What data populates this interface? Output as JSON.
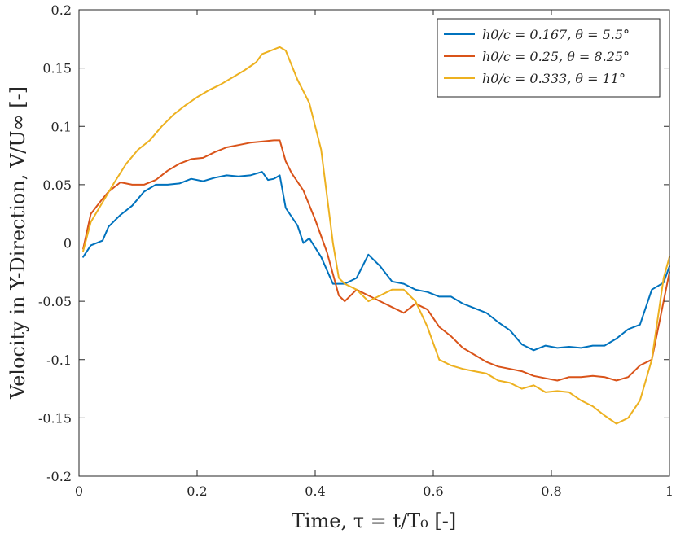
{
  "chart_data": {
    "type": "line",
    "title": "",
    "xlabel": "Time, τ = t/T₀ [-]",
    "ylabel": "Velocity in Y-Direction, V/U∞ [-]",
    "xlim": [
      0,
      1
    ],
    "ylim": [
      -0.2,
      0.2
    ],
    "xticks": [
      0,
      0.2,
      0.4,
      0.6,
      0.8,
      1
    ],
    "xtick_labels": [
      "0",
      "0.2",
      "0.4",
      "0.6",
      "0.8",
      "1"
    ],
    "yticks": [
      -0.2,
      -0.15,
      -0.1,
      -0.05,
      0,
      0.05,
      0.1,
      0.15,
      0.2
    ],
    "ytick_labels": [
      "-0.2",
      "-0.15",
      "-0.1",
      "-0.05",
      "0",
      "0.05",
      "0.1",
      "0.15",
      "0.2"
    ],
    "grid": false,
    "legend_position": "top-right",
    "series": [
      {
        "name": "h0/c = 0.167, θ = 5.5°",
        "color": "#0072BD",
        "x": [
          0.007,
          0.02,
          0.04,
          0.05,
          0.07,
          0.09,
          0.11,
          0.13,
          0.15,
          0.17,
          0.19,
          0.21,
          0.23,
          0.25,
          0.27,
          0.29,
          0.31,
          0.32,
          0.33,
          0.34,
          0.35,
          0.37,
          0.38,
          0.39,
          0.41,
          0.43,
          0.45,
          0.47,
          0.49,
          0.51,
          0.53,
          0.55,
          0.57,
          0.59,
          0.61,
          0.63,
          0.65,
          0.67,
          0.69,
          0.71,
          0.73,
          0.75,
          0.77,
          0.79,
          0.81,
          0.83,
          0.85,
          0.87,
          0.89,
          0.91,
          0.93,
          0.95,
          0.97,
          0.99,
          1.0
        ],
        "values": [
          -0.012,
          -0.002,
          0.002,
          0.014,
          0.024,
          0.032,
          0.044,
          0.05,
          0.05,
          0.051,
          0.055,
          0.053,
          0.056,
          0.058,
          0.057,
          0.058,
          0.061,
          0.054,
          0.055,
          0.058,
          0.03,
          0.015,
          0.0,
          0.004,
          -0.012,
          -0.035,
          -0.035,
          -0.03,
          -0.01,
          -0.02,
          -0.033,
          -0.035,
          -0.04,
          -0.042,
          -0.046,
          -0.046,
          -0.052,
          -0.056,
          -0.06,
          -0.068,
          -0.075,
          -0.087,
          -0.092,
          -0.088,
          -0.09,
          -0.089,
          -0.09,
          -0.088,
          -0.088,
          -0.082,
          -0.074,
          -0.07,
          -0.04,
          -0.034,
          -0.02
        ]
      },
      {
        "name": "h0/c = 0.25, θ = 8.25°",
        "color": "#D95319",
        "x": [
          0.007,
          0.02,
          0.04,
          0.05,
          0.07,
          0.09,
          0.11,
          0.13,
          0.15,
          0.17,
          0.19,
          0.21,
          0.23,
          0.25,
          0.27,
          0.29,
          0.31,
          0.33,
          0.34,
          0.35,
          0.36,
          0.38,
          0.4,
          0.42,
          0.44,
          0.45,
          0.47,
          0.49,
          0.51,
          0.53,
          0.55,
          0.57,
          0.59,
          0.61,
          0.63,
          0.65,
          0.67,
          0.69,
          0.71,
          0.73,
          0.75,
          0.77,
          0.79,
          0.81,
          0.83,
          0.85,
          0.87,
          0.89,
          0.91,
          0.93,
          0.95,
          0.97,
          0.99,
          1.0
        ],
        "values": [
          -0.005,
          0.025,
          0.038,
          0.044,
          0.052,
          0.05,
          0.05,
          0.054,
          0.062,
          0.068,
          0.072,
          0.073,
          0.078,
          0.082,
          0.084,
          0.086,
          0.087,
          0.088,
          0.088,
          0.07,
          0.06,
          0.045,
          0.02,
          -0.008,
          -0.045,
          -0.05,
          -0.04,
          -0.045,
          -0.05,
          -0.055,
          -0.06,
          -0.052,
          -0.057,
          -0.072,
          -0.08,
          -0.09,
          -0.096,
          -0.102,
          -0.106,
          -0.108,
          -0.11,
          -0.114,
          -0.116,
          -0.118,
          -0.115,
          -0.115,
          -0.114,
          -0.115,
          -0.118,
          -0.115,
          -0.105,
          -0.1,
          -0.05,
          -0.025
        ]
      },
      {
        "name": "h0/c = 0.333, θ = 11°",
        "color": "#EDB120",
        "x": [
          0.007,
          0.02,
          0.04,
          0.06,
          0.08,
          0.1,
          0.12,
          0.14,
          0.16,
          0.18,
          0.2,
          0.22,
          0.24,
          0.26,
          0.28,
          0.3,
          0.31,
          0.33,
          0.34,
          0.35,
          0.37,
          0.39,
          0.41,
          0.43,
          0.44,
          0.45,
          0.47,
          0.49,
          0.51,
          0.53,
          0.55,
          0.57,
          0.59,
          0.61,
          0.63,
          0.65,
          0.67,
          0.69,
          0.71,
          0.73,
          0.75,
          0.77,
          0.79,
          0.81,
          0.83,
          0.85,
          0.87,
          0.89,
          0.91,
          0.93,
          0.95,
          0.97,
          0.99,
          1.0
        ],
        "values": [
          -0.007,
          0.018,
          0.035,
          0.052,
          0.068,
          0.08,
          0.088,
          0.1,
          0.11,
          0.118,
          0.125,
          0.131,
          0.136,
          0.142,
          0.148,
          0.155,
          0.162,
          0.166,
          0.168,
          0.165,
          0.14,
          0.12,
          0.08,
          0.0,
          -0.03,
          -0.035,
          -0.04,
          -0.05,
          -0.045,
          -0.04,
          -0.04,
          -0.05,
          -0.072,
          -0.1,
          -0.105,
          -0.108,
          -0.11,
          -0.112,
          -0.118,
          -0.12,
          -0.125,
          -0.122,
          -0.128,
          -0.127,
          -0.128,
          -0.135,
          -0.14,
          -0.148,
          -0.155,
          -0.15,
          -0.135,
          -0.1,
          -0.03,
          -0.012
        ]
      }
    ]
  }
}
